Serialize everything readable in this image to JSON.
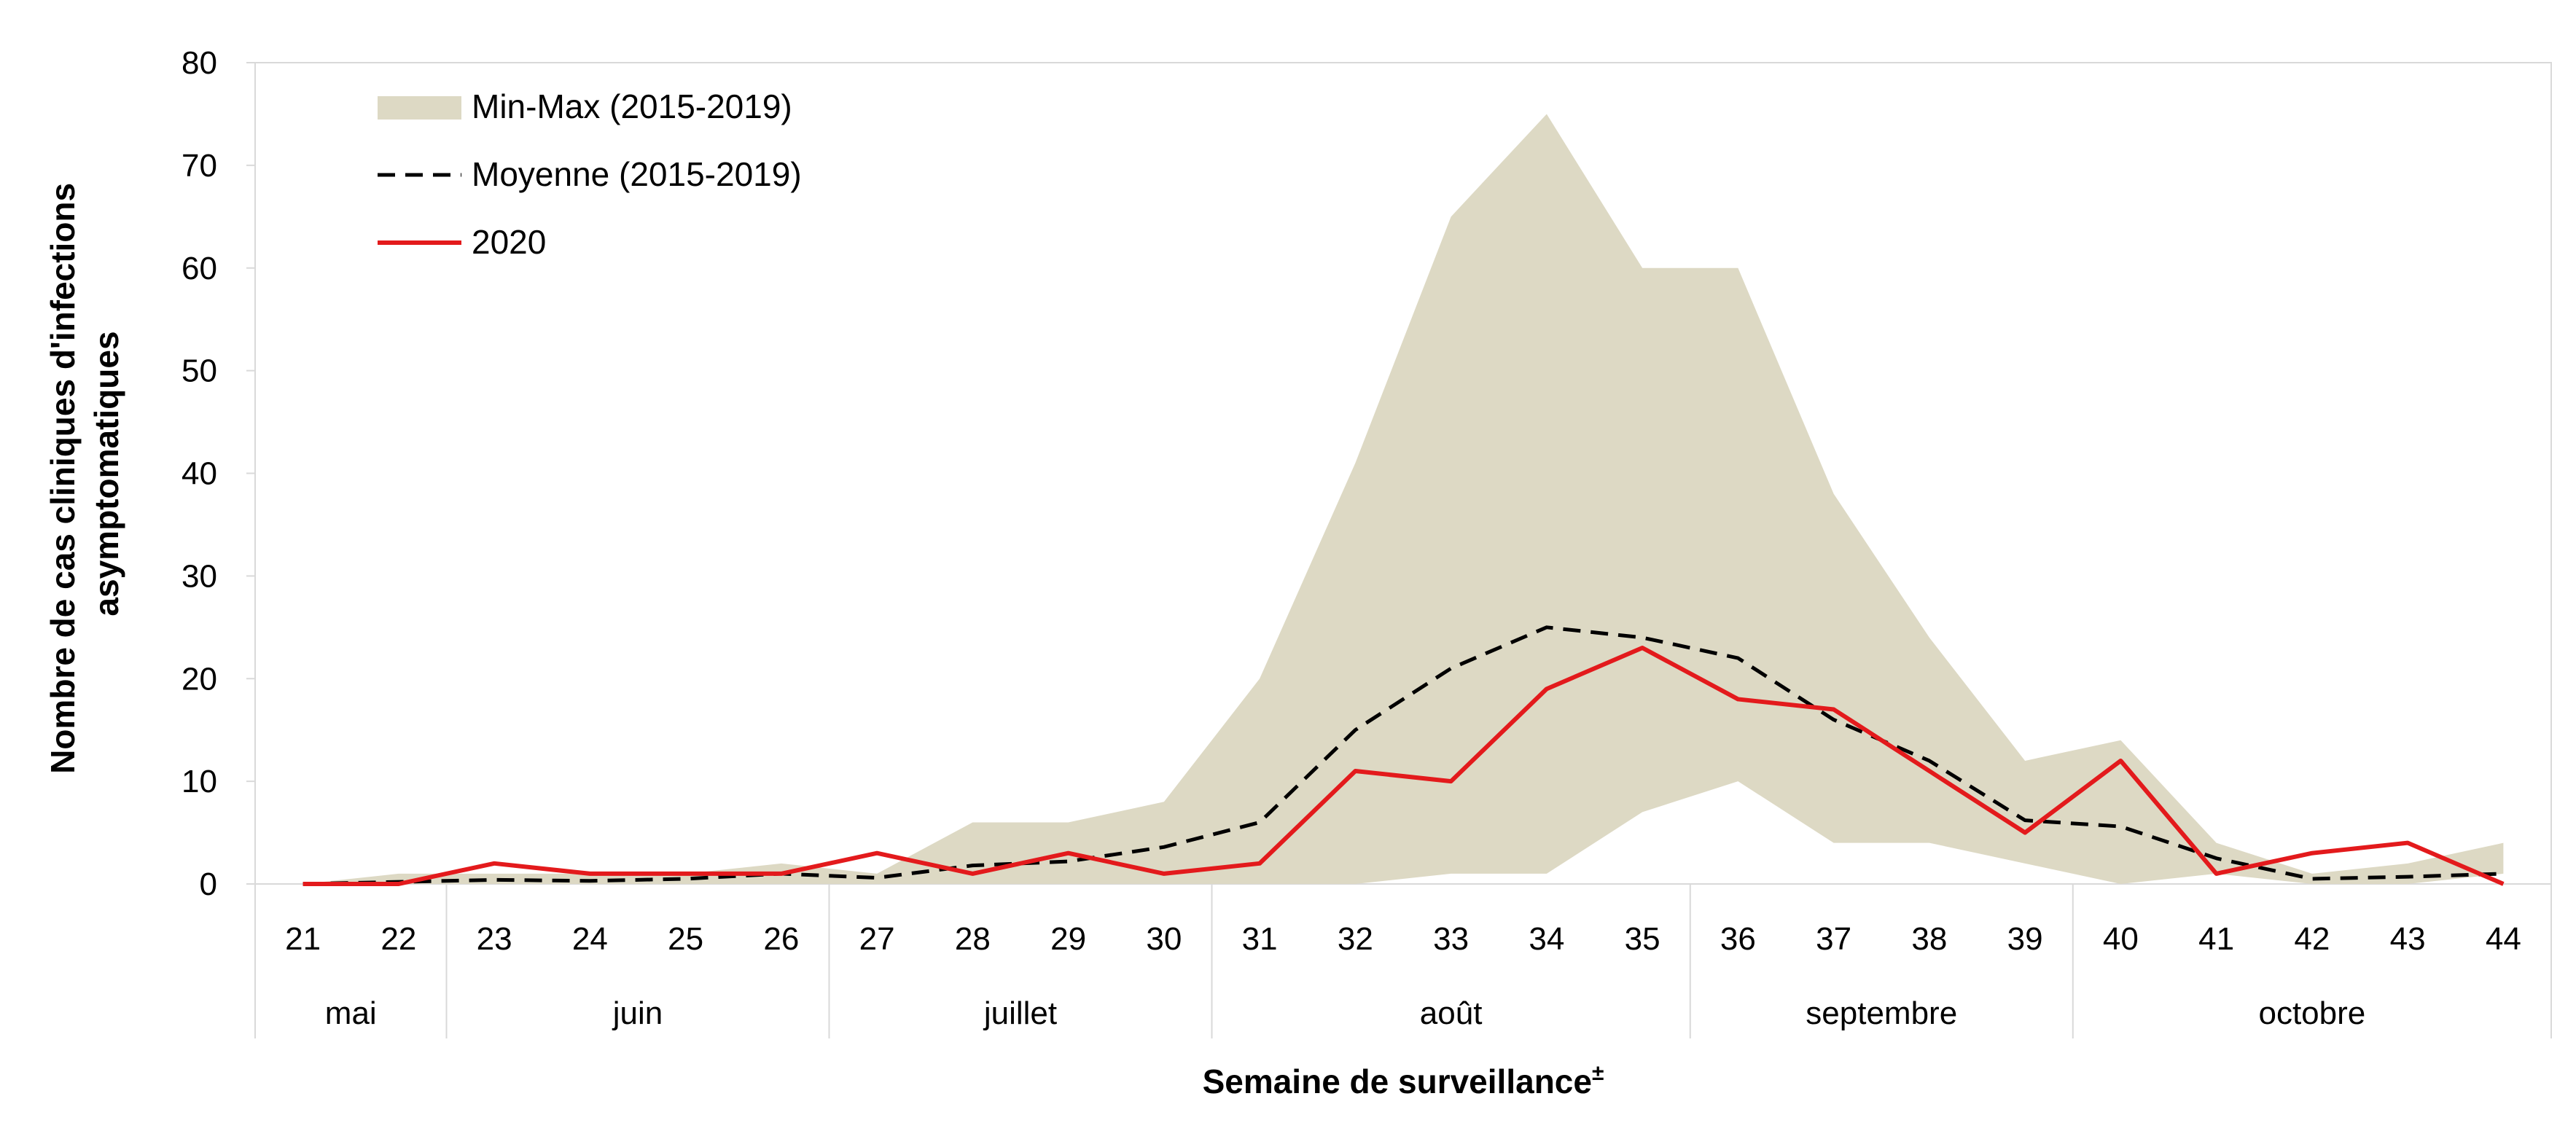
{
  "chart_data": {
    "type": "line",
    "title": "",
    "xlabel": "Semaine de surveillance",
    "xlabel_superscript": "±",
    "ylabel_lines": [
      "Nombre de cas cliniques d'infections",
      "asymptomatiques"
    ],
    "ylim": [
      0,
      80
    ],
    "yticks": [
      0,
      10,
      20,
      30,
      40,
      50,
      60,
      70,
      80
    ],
    "x": [
      21,
      22,
      23,
      24,
      25,
      26,
      27,
      28,
      29,
      30,
      31,
      32,
      33,
      34,
      35,
      36,
      37,
      38,
      39,
      40,
      41,
      42,
      43,
      44
    ],
    "months": [
      {
        "label": "mai",
        "start": 21,
        "end": 22
      },
      {
        "label": "juin",
        "start": 23,
        "end": 26
      },
      {
        "label": "juillet",
        "start": 27,
        "end": 30
      },
      {
        "label": "août",
        "start": 31,
        "end": 35
      },
      {
        "label": "septembre",
        "start": 36,
        "end": 39
      },
      {
        "label": "octobre",
        "start": 40,
        "end": 44
      }
    ],
    "legend_position": "top-left",
    "band": {
      "name": "Min-Max (2015-2019)",
      "color": "#ddd9c4",
      "min": [
        0,
        0,
        0,
        0,
        0,
        0,
        0,
        0,
        0,
        0,
        0,
        0,
        1,
        1,
        7,
        10,
        4,
        4,
        2,
        0,
        1,
        0,
        0,
        1
      ],
      "max": [
        0,
        1,
        1,
        1,
        1,
        2,
        1,
        6,
        6,
        8,
        20,
        41,
        65,
        75,
        60,
        60,
        38,
        24,
        12,
        14,
        4,
        1,
        2,
        4
      ]
    },
    "series": [
      {
        "name": "Moyenne (2015-2019)",
        "style": "dashed",
        "color": "#000000",
        "values": [
          0,
          0.2,
          0.4,
          0.3,
          0.5,
          1,
          0.6,
          1.8,
          2.2,
          3.6,
          6,
          15,
          21,
          25,
          24,
          22,
          16,
          12,
          6.2,
          5.6,
          2.5,
          0.5,
          0.7,
          1
        ]
      },
      {
        "name": "2020",
        "style": "solid",
        "color": "#e31a1c",
        "values": [
          0,
          0,
          2,
          1,
          1,
          1,
          3,
          1,
          3,
          1,
          2,
          11,
          10,
          19,
          23,
          18,
          17,
          11,
          5,
          12,
          1,
          3,
          4,
          0
        ]
      }
    ]
  }
}
